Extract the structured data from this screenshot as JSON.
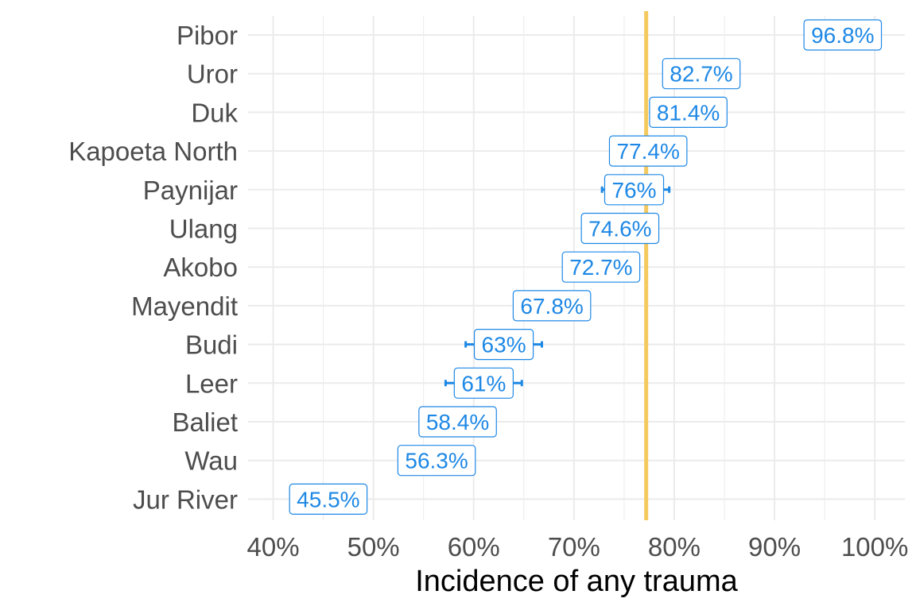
{
  "chart_data": {
    "type": "scatter",
    "xlabel": "Incidence of any trauma",
    "ylabel": "",
    "title": "",
    "xlim": [
      0.375,
      1.03
    ],
    "x_ticks": [
      0.4,
      0.5,
      0.6,
      0.7,
      0.8,
      0.9,
      1.0
    ],
    "x_tick_labels": [
      "40%",
      "50%",
      "60%",
      "70%",
      "80%",
      "90%",
      "100%"
    ],
    "grid": true,
    "reference_line": 0.772,
    "categories": [
      "Pibor",
      "Uror",
      "Duk",
      "Kapoeta North",
      "Paynijar",
      "Ulang",
      "Akobo",
      "Mayendit",
      "Budi",
      "Leer",
      "Baliet",
      "Wau",
      "Jur River"
    ],
    "values": [
      0.968,
      0.827,
      0.814,
      0.774,
      0.76,
      0.746,
      0.727,
      0.678,
      0.63,
      0.61,
      0.584,
      0.563,
      0.455
    ],
    "labels": [
      "96.8%",
      "82.7%",
      "81.4%",
      "77.4%",
      "76%",
      "74.6%",
      "72.7%",
      "67.8%",
      "63%",
      "61%",
      "58.4%",
      "56.3%",
      "45.5%"
    ],
    "ci_low": [
      0.968,
      0.827,
      0.814,
      0.774,
      0.728,
      0.746,
      0.727,
      0.678,
      0.592,
      0.572,
      0.584,
      0.563,
      0.455
    ],
    "ci_high": [
      0.968,
      0.827,
      0.814,
      0.774,
      0.795,
      0.746,
      0.727,
      0.678,
      0.668,
      0.648,
      0.584,
      0.563,
      0.455
    ],
    "colors": {
      "label": "#1e88e5",
      "reference": "#f4c95d",
      "grid": "#ebebeb",
      "text": "#4d4d4d"
    }
  }
}
